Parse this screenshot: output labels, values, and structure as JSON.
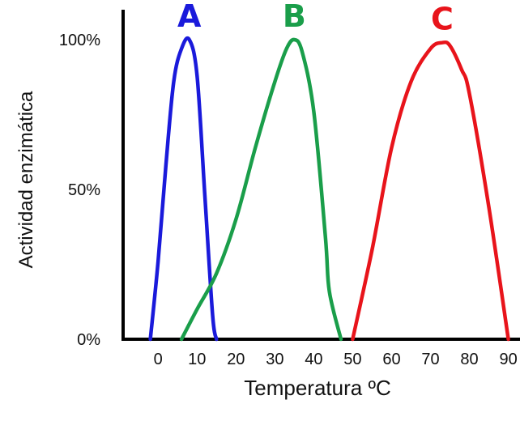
{
  "chart_data": {
    "type": "line",
    "xlabel": "Temperatura ºC",
    "ylabel": "Actividad enzimática",
    "x_ticks": [
      "0",
      "10",
      "20",
      "30",
      "40",
      "50",
      "60",
      "70",
      "80",
      "90"
    ],
    "x_tick_values": [
      0,
      10,
      20,
      30,
      40,
      50,
      60,
      70,
      80,
      90
    ],
    "y_ticks": [
      "0%",
      "50%",
      "100%"
    ],
    "y_tick_values": [
      0,
      50,
      100
    ],
    "xlim": [
      -9,
      93
    ],
    "ylim": [
      0,
      110
    ],
    "grid": false,
    "series": [
      {
        "name": "A",
        "color": "#1a1adb",
        "x": [
          -2,
          0,
          2,
          4,
          6,
          8,
          10,
          12,
          14,
          15
        ],
        "y": [
          0,
          26,
          58,
          86,
          97,
          100,
          88,
          48,
          8,
          0
        ]
      },
      {
        "name": "B",
        "color": "#1a9e4a",
        "x": [
          6,
          10,
          15,
          20,
          25,
          30,
          33,
          35,
          37,
          40,
          43,
          44,
          47
        ],
        "y": [
          0,
          10,
          22,
          40,
          64,
          86,
          97,
          100,
          96,
          76,
          34,
          16,
          0
        ]
      },
      {
        "name": "C",
        "color": "#e8141b",
        "x": [
          50,
          55,
          60,
          65,
          70,
          73,
          75,
          78,
          80,
          85,
          90
        ],
        "y": [
          0,
          30,
          64,
          86,
          97,
          99,
          98,
          90,
          82,
          44,
          0
        ]
      }
    ]
  }
}
